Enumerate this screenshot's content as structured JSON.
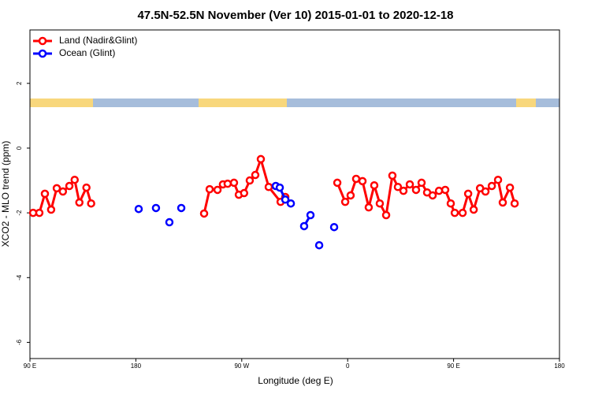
{
  "chart_data": {
    "type": "line",
    "title": "47.5N-52.5N November (Ver 10)   2015-01-01 to 2020-12-18",
    "x_label": "Longitude (deg E)",
    "y_label": "XCO2 - MLO trend (ppm)",
    "xlim": [
      90,
      540
    ],
    "ylim": [
      -6.5,
      3.65
    ],
    "xticks": [
      {
        "value": 90,
        "label": "90 E"
      },
      180,
      {
        "value": 270,
        "label": "90 W"
      },
      {
        "value": 360,
        "label": "0"
      },
      {
        "value": 450,
        "label": "90 E"
      },
      {
        "value": 540,
        "label": "180"
      }
    ],
    "yticks": [
      -6,
      -4,
      -2,
      0,
      2
    ],
    "legend": "top-left",
    "series": [
      {
        "name": "Land (Nadir&Glint)",
        "color": "#ff0000",
        "x": [
          92.7,
          98,
          102.7,
          108,
          112.8,
          118,
          123.5,
          128,
          132,
          138,
          142,
          null,
          238,
          242.7,
          249.4,
          254,
          258,
          263.4,
          267.5,
          272,
          276.8,
          281.5,
          286.2,
          292.9,
          303,
          307,
          null,
          351.2,
          357.9,
          362.5,
          367.2,
          372.6,
          377.9,
          382.6,
          387.3,
          392.7,
          398,
          402.7,
          407.4,
          412.8,
          418.1,
          422.8,
          427.5,
          432.2,
          437.6,
          442.9,
          447.6,
          451,
          457.7,
          462.4,
          467.1,
          472.5,
          477.1,
          482.5,
          487.8,
          491.8,
          497.9,
          501.9
        ],
        "values": [
          -2.0,
          -2.0,
          -1.41,
          -1.9,
          -1.24,
          -1.34,
          -1.17,
          -0.98,
          -1.68,
          -1.22,
          -1.71,
          null,
          -2.02,
          -1.27,
          -1.29,
          -1.12,
          -1.1,
          -1.07,
          -1.44,
          -1.39,
          -1.0,
          -0.83,
          -0.34,
          -1.2,
          -1.66,
          -1.51,
          null,
          -1.07,
          -1.66,
          -1.46,
          -0.95,
          -1.02,
          -1.83,
          -1.15,
          -1.71,
          -2.07,
          -0.85,
          -1.2,
          -1.32,
          -1.12,
          -1.29,
          -1.07,
          -1.37,
          -1.46,
          -1.32,
          -1.29,
          -1.71,
          -2.0,
          -2.0,
          -1.41,
          -1.9,
          -1.24,
          -1.34,
          -1.17,
          -0.98,
          -1.68,
          -1.22,
          -1.71
        ]
      },
      {
        "name": "Ocean (Glint)",
        "color": "#0000ff",
        "x": [
          182.4,
          null,
          197.1,
          null,
          208.5,
          null,
          218.6,
          null,
          298.9,
          302.3,
          307,
          311.7,
          null,
          323,
          328.4,
          null,
          335.8,
          null,
          348.5
        ],
        "values": [
          -1.88,
          null,
          -1.85,
          null,
          -2.29,
          null,
          -1.85,
          null,
          -1.17,
          -1.22,
          -1.59,
          -1.71,
          null,
          -2.41,
          -2.07,
          null,
          -3.0,
          null,
          -2.44
        ]
      }
    ]
  }
}
